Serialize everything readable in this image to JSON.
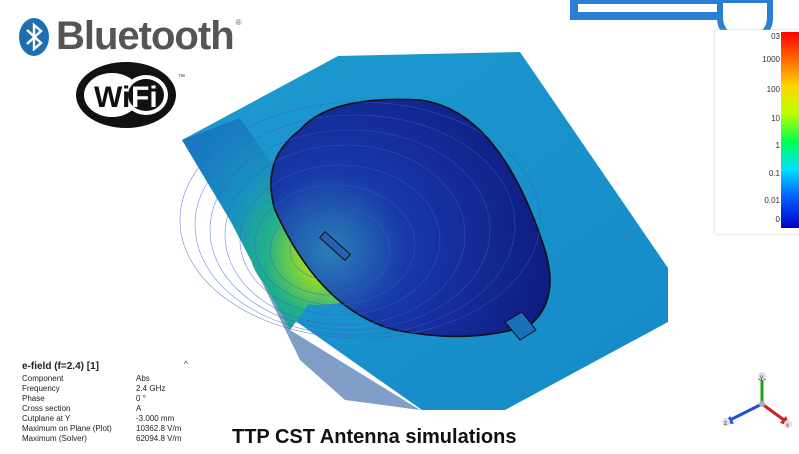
{
  "logos": {
    "bluetooth_text": "Bluetooth",
    "bluetooth_registered": "®",
    "wifi_text": "WiFi",
    "wifi_trademark": "™"
  },
  "legend": {
    "ticks": [
      "1000",
      "100",
      "10",
      "1",
      "0.1",
      "0.01",
      "0"
    ],
    "top_partial": "03"
  },
  "info": {
    "title": "e-field (f=2.4) [1]",
    "toggle": "^",
    "rows": [
      {
        "key": "Component",
        "value": "Abs"
      },
      {
        "key": "Frequency",
        "value": "2.4 GHz"
      },
      {
        "key": "Phase",
        "value": "0 °"
      },
      {
        "key": "Cross section",
        "value": "A"
      },
      {
        "key": "Cutplane at Y",
        "value": "-3.000 mm"
      },
      {
        "key": "Maximum on Plane (Plot)",
        "value": "10362.8 V/m"
      },
      {
        "key": "Maximum (Solver)",
        "value": "62094.8 V/m"
      }
    ]
  },
  "caption": "TTP CST Antenna simulations",
  "axes": {
    "x_label": "x",
    "y_label": "y",
    "z_label": "z"
  },
  "colors": {
    "field_low": "#0a1a8a",
    "field_mid": "#1aa0c8",
    "field_high": "#c8e020",
    "bluetooth_badge": "#1f6fb0",
    "frame_blue": "#2a7fd4"
  }
}
